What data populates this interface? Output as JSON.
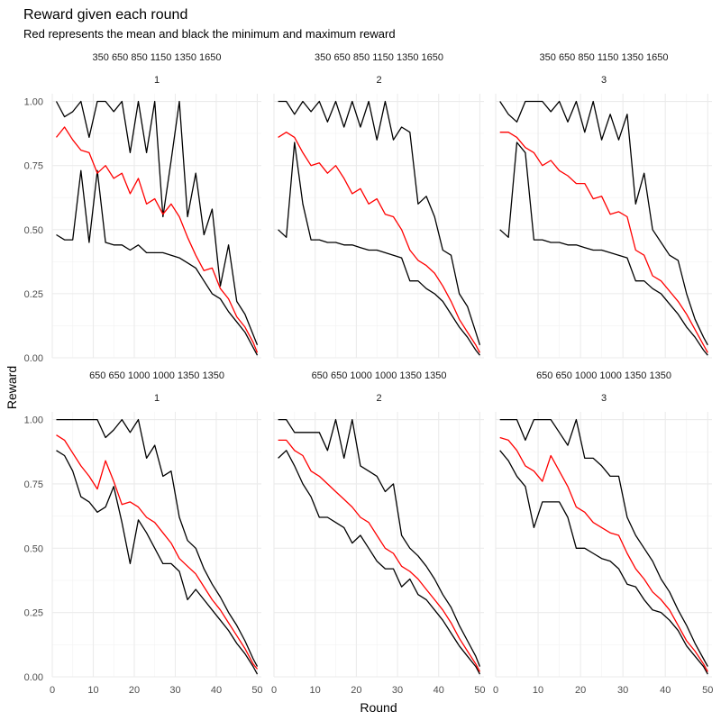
{
  "chart_data": {
    "type": "line",
    "title": "Reward given each round",
    "subtitle": "Red represents the mean and black the minimum and maximum reward",
    "xlabel": "Round",
    "ylabel": "Reward",
    "xlim": [
      0,
      51
    ],
    "ylim": [
      0,
      1.03
    ],
    "x_ticks": [
      0,
      10,
      20,
      30,
      40,
      50
    ],
    "y_ticks": [
      0.0,
      0.25,
      0.5,
      0.75,
      1.0
    ],
    "y_tick_labels": [
      "0.00",
      "0.25",
      "0.50",
      "0.75",
      "1.00"
    ],
    "grid": true,
    "series_colors": {
      "min": "#000000",
      "max": "#000000",
      "mean": "#ff0000"
    },
    "rows": [
      {
        "strip_top": "350 650 850 1150 1350 1650"
      },
      {
        "strip_top": "650 650 1000 1000 1350 1350"
      }
    ],
    "panels": [
      {
        "row": 0,
        "col": 0,
        "strip_top": "350 650 850 1150 1350 1650",
        "strip_label": "1",
        "x": [
          1,
          3,
          5,
          7,
          9,
          11,
          13,
          15,
          17,
          19,
          21,
          23,
          25,
          27,
          29,
          31,
          33,
          35,
          37,
          39,
          41,
          43,
          45,
          47,
          49,
          50
        ],
        "max": [
          1.0,
          0.94,
          0.96,
          1.0,
          0.86,
          1.0,
          1.0,
          0.96,
          1.0,
          0.8,
          1.0,
          0.8,
          1.0,
          0.55,
          0.77,
          1.0,
          0.55,
          0.72,
          0.48,
          0.58,
          0.28,
          0.44,
          0.22,
          0.17,
          0.09,
          0.05
        ],
        "mean": [
          0.86,
          0.9,
          0.85,
          0.81,
          0.8,
          0.72,
          0.75,
          0.7,
          0.72,
          0.64,
          0.7,
          0.6,
          0.62,
          0.56,
          0.6,
          0.55,
          0.47,
          0.4,
          0.34,
          0.35,
          0.27,
          0.23,
          0.16,
          0.12,
          0.06,
          0.02
        ],
        "min": [
          0.48,
          0.46,
          0.46,
          0.73,
          0.45,
          0.73,
          0.45,
          0.44,
          0.44,
          0.42,
          0.44,
          0.41,
          0.41,
          0.41,
          0.4,
          0.39,
          0.37,
          0.35,
          0.3,
          0.25,
          0.23,
          0.18,
          0.14,
          0.1,
          0.04,
          0.01
        ]
      },
      {
        "row": 0,
        "col": 1,
        "strip_top": "350 650 850 1150 1350 1650",
        "strip_label": "2",
        "x": [
          1,
          3,
          5,
          7,
          9,
          11,
          13,
          15,
          17,
          19,
          21,
          23,
          25,
          27,
          29,
          31,
          33,
          35,
          37,
          39,
          41,
          43,
          45,
          47,
          49,
          50
        ],
        "max": [
          1.0,
          1.0,
          0.95,
          1.0,
          0.96,
          1.0,
          0.92,
          1.0,
          0.9,
          1.0,
          0.9,
          1.0,
          0.85,
          1.0,
          0.85,
          0.9,
          0.88,
          0.6,
          0.63,
          0.55,
          0.42,
          0.4,
          0.25,
          0.2,
          0.1,
          0.05
        ],
        "mean": [
          0.86,
          0.88,
          0.86,
          0.8,
          0.75,
          0.76,
          0.72,
          0.75,
          0.7,
          0.64,
          0.66,
          0.6,
          0.62,
          0.56,
          0.55,
          0.5,
          0.42,
          0.38,
          0.36,
          0.33,
          0.28,
          0.22,
          0.15,
          0.1,
          0.05,
          0.02
        ],
        "min": [
          0.5,
          0.47,
          0.84,
          0.6,
          0.46,
          0.46,
          0.45,
          0.45,
          0.44,
          0.44,
          0.43,
          0.42,
          0.42,
          0.41,
          0.4,
          0.39,
          0.3,
          0.3,
          0.27,
          0.25,
          0.22,
          0.17,
          0.12,
          0.08,
          0.03,
          0.01
        ]
      },
      {
        "row": 0,
        "col": 2,
        "strip_top": "350 650 850 1150 1350 1650",
        "strip_label": "3",
        "x": [
          1,
          3,
          5,
          7,
          9,
          11,
          13,
          15,
          17,
          19,
          21,
          23,
          25,
          27,
          29,
          31,
          33,
          35,
          37,
          39,
          41,
          43,
          45,
          47,
          49,
          50
        ],
        "max": [
          1.0,
          0.95,
          0.92,
          1.0,
          1.0,
          1.0,
          0.96,
          1.0,
          0.92,
          1.0,
          0.88,
          1.0,
          0.85,
          0.95,
          0.85,
          0.95,
          0.6,
          0.72,
          0.5,
          0.45,
          0.4,
          0.38,
          0.25,
          0.15,
          0.08,
          0.05
        ],
        "mean": [
          0.88,
          0.88,
          0.86,
          0.82,
          0.8,
          0.75,
          0.77,
          0.73,
          0.71,
          0.68,
          0.68,
          0.62,
          0.63,
          0.56,
          0.57,
          0.55,
          0.42,
          0.4,
          0.32,
          0.3,
          0.26,
          0.22,
          0.17,
          0.11,
          0.05,
          0.02
        ],
        "min": [
          0.5,
          0.47,
          0.84,
          0.8,
          0.46,
          0.46,
          0.45,
          0.45,
          0.44,
          0.44,
          0.43,
          0.42,
          0.42,
          0.41,
          0.4,
          0.39,
          0.3,
          0.3,
          0.27,
          0.25,
          0.21,
          0.17,
          0.12,
          0.08,
          0.03,
          0.01
        ]
      },
      {
        "row": 1,
        "col": 0,
        "strip_top": "650 650 1000 1000 1350 1350",
        "strip_label": "1",
        "x": [
          1,
          3,
          5,
          7,
          9,
          11,
          13,
          15,
          17,
          19,
          21,
          23,
          25,
          27,
          29,
          31,
          33,
          35,
          37,
          39,
          41,
          43,
          45,
          47,
          49,
          50
        ],
        "max": [
          1.0,
          1.0,
          1.0,
          1.0,
          1.0,
          1.0,
          0.93,
          0.96,
          1.0,
          0.95,
          1.0,
          0.85,
          0.9,
          0.78,
          0.8,
          0.62,
          0.53,
          0.5,
          0.42,
          0.36,
          0.31,
          0.25,
          0.2,
          0.14,
          0.07,
          0.04
        ],
        "mean": [
          0.94,
          0.92,
          0.87,
          0.82,
          0.78,
          0.73,
          0.84,
          0.76,
          0.67,
          0.68,
          0.66,
          0.62,
          0.6,
          0.56,
          0.52,
          0.46,
          0.43,
          0.4,
          0.35,
          0.3,
          0.26,
          0.21,
          0.16,
          0.11,
          0.05,
          0.03
        ],
        "min": [
          0.88,
          0.86,
          0.8,
          0.7,
          0.68,
          0.64,
          0.66,
          0.74,
          0.6,
          0.44,
          0.61,
          0.56,
          0.5,
          0.44,
          0.44,
          0.41,
          0.3,
          0.34,
          0.3,
          0.26,
          0.22,
          0.18,
          0.13,
          0.09,
          0.04,
          0.01
        ]
      },
      {
        "row": 1,
        "col": 1,
        "strip_top": "650 650 1000 1000 1350 1350",
        "strip_label": "2",
        "x": [
          1,
          3,
          5,
          7,
          9,
          11,
          13,
          15,
          17,
          19,
          21,
          23,
          25,
          27,
          29,
          31,
          33,
          35,
          37,
          39,
          41,
          43,
          45,
          47,
          49,
          50
        ],
        "max": [
          1.0,
          1.0,
          0.95,
          0.95,
          0.95,
          0.95,
          0.88,
          1.0,
          0.85,
          1.0,
          0.82,
          0.8,
          0.78,
          0.72,
          0.75,
          0.55,
          0.5,
          0.47,
          0.43,
          0.38,
          0.32,
          0.27,
          0.2,
          0.14,
          0.08,
          0.04
        ],
        "mean": [
          0.92,
          0.92,
          0.88,
          0.86,
          0.8,
          0.78,
          0.75,
          0.72,
          0.69,
          0.66,
          0.62,
          0.6,
          0.55,
          0.5,
          0.48,
          0.43,
          0.41,
          0.38,
          0.34,
          0.3,
          0.26,
          0.21,
          0.15,
          0.1,
          0.05,
          0.02
        ],
        "min": [
          0.85,
          0.88,
          0.82,
          0.75,
          0.7,
          0.62,
          0.62,
          0.6,
          0.58,
          0.52,
          0.55,
          0.5,
          0.45,
          0.42,
          0.42,
          0.35,
          0.38,
          0.32,
          0.3,
          0.26,
          0.22,
          0.17,
          0.12,
          0.08,
          0.04,
          0.01
        ]
      },
      {
        "row": 1,
        "col": 2,
        "strip_top": "650 650 1000 1000 1350 1350",
        "strip_label": "3",
        "x": [
          1,
          3,
          5,
          7,
          9,
          11,
          13,
          15,
          17,
          19,
          21,
          23,
          25,
          27,
          29,
          31,
          33,
          35,
          37,
          39,
          41,
          43,
          45,
          47,
          49,
          50
        ],
        "max": [
          1.0,
          1.0,
          1.0,
          0.92,
          1.0,
          1.0,
          1.0,
          0.95,
          0.9,
          1.0,
          0.85,
          0.85,
          0.82,
          0.78,
          0.78,
          0.62,
          0.55,
          0.5,
          0.45,
          0.38,
          0.33,
          0.26,
          0.2,
          0.13,
          0.07,
          0.04
        ],
        "mean": [
          0.93,
          0.92,
          0.88,
          0.82,
          0.8,
          0.76,
          0.86,
          0.8,
          0.74,
          0.66,
          0.64,
          0.6,
          0.58,
          0.56,
          0.55,
          0.48,
          0.42,
          0.38,
          0.33,
          0.3,
          0.26,
          0.2,
          0.14,
          0.1,
          0.05,
          0.02
        ],
        "min": [
          0.88,
          0.84,
          0.78,
          0.74,
          0.58,
          0.68,
          0.68,
          0.68,
          0.62,
          0.5,
          0.5,
          0.48,
          0.46,
          0.45,
          0.42,
          0.36,
          0.35,
          0.3,
          0.26,
          0.25,
          0.22,
          0.18,
          0.12,
          0.08,
          0.04,
          0.01
        ]
      }
    ]
  }
}
